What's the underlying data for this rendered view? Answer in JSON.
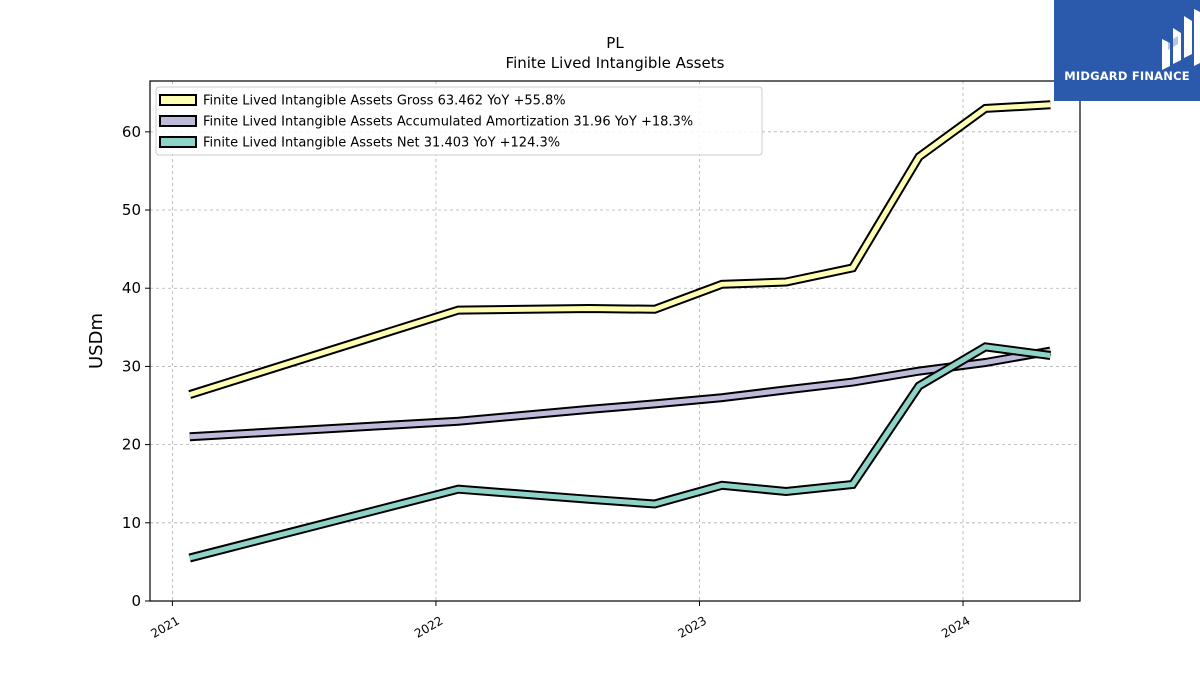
{
  "logo": {
    "text": "MIDGARD FINANCE",
    "background": "#2b5aad",
    "icon": "midgard-logo-icon"
  },
  "chart_data": {
    "type": "line",
    "title": "PL",
    "subtitle": "Finite Lived Intangible Assets",
    "xlabel": "",
    "ylabel": "USDm",
    "xlim": [
      "2020-12-01",
      "2024-06-11"
    ],
    "ylim": [
      0,
      66.5
    ],
    "x_ticks": [
      "2021",
      "2022",
      "2023",
      "2024"
    ],
    "y_ticks": [
      0,
      10,
      20,
      30,
      40,
      50,
      60
    ],
    "grid": true,
    "legend_position": "top-left",
    "series": [
      {
        "name": "Finite Lived Intangible Assets Gross  63.462 YoY +55.8%",
        "color": "#ffffb3",
        "points": [
          [
            "2021-01-25",
            26.4
          ],
          [
            "2022-02-01",
            37.2
          ],
          [
            "2022-08-01",
            37.4
          ],
          [
            "2022-10-31",
            37.3
          ],
          [
            "2023-02-01",
            40.5
          ],
          [
            "2023-05-01",
            40.8
          ],
          [
            "2023-08-01",
            42.6
          ],
          [
            "2023-11-01",
            56.8
          ],
          [
            "2024-02-01",
            63.0
          ],
          [
            "2024-05-01",
            63.46
          ]
        ]
      },
      {
        "name": "Finite Lived Intangible Assets Accumulated Amortization  31.96 YoY +18.3%",
        "color": "#bebada",
        "points": [
          [
            "2021-01-25",
            21.0
          ],
          [
            "2022-02-01",
            23.0
          ],
          [
            "2022-08-01",
            24.5
          ],
          [
            "2022-10-31",
            25.2
          ],
          [
            "2023-02-01",
            26.0
          ],
          [
            "2023-05-01",
            27.0
          ],
          [
            "2023-08-01",
            28.0
          ],
          [
            "2023-11-01",
            29.4
          ],
          [
            "2024-02-01",
            30.5
          ],
          [
            "2024-05-01",
            31.96
          ]
        ]
      },
      {
        "name": "Finite Lived Intangible Assets Net  31.403 YoY +124.3%",
        "color": "#8dd3c7",
        "points": [
          [
            "2021-01-25",
            5.5
          ],
          [
            "2022-02-01",
            14.3
          ],
          [
            "2022-08-01",
            13.0
          ],
          [
            "2022-10-31",
            12.4
          ],
          [
            "2023-02-01",
            14.8
          ],
          [
            "2023-05-01",
            14.0
          ],
          [
            "2023-08-01",
            14.9
          ],
          [
            "2023-11-01",
            27.5
          ],
          [
            "2024-02-01",
            32.5
          ],
          [
            "2024-05-01",
            31.4
          ]
        ]
      }
    ]
  }
}
